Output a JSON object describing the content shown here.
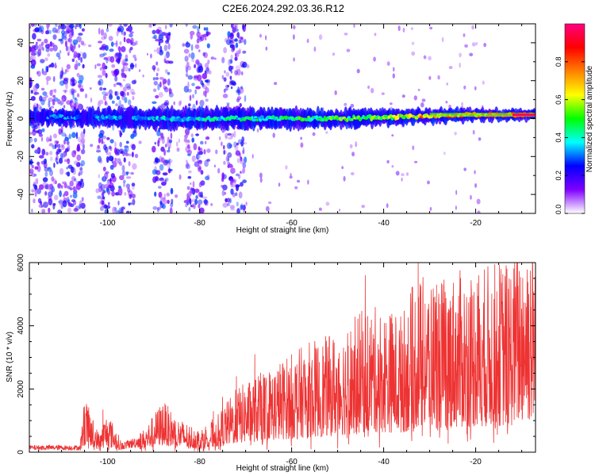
{
  "title": "C2E6.2024.292.03.36.R12",
  "chart_data": [
    {
      "type": "heatmap",
      "xlabel": "Height of straight line (km)",
      "ylabel": "Frequency (Hz)",
      "xlim": [
        -117,
        -7
      ],
      "ylim": [
        -50,
        50
      ],
      "xticks": [
        -100,
        -80,
        -60,
        -40,
        -20
      ],
      "yticks": [
        -40,
        -20,
        0,
        20,
        40
      ],
      "colorbar": {
        "label": "Normalized spectral amplitude",
        "range": [
          0,
          1
        ],
        "ticks": [
          0.0,
          0.2,
          0.4,
          0.6,
          0.8
        ],
        "tick_labels": [
          "0.0",
          "0.2",
          "0.4",
          "0.6",
          "0.8"
        ],
        "stops": [
          "#ffffff",
          "#8000ff",
          "#0000ff",
          "#00ffff",
          "#00ff00",
          "#ffff00",
          "#ff8000",
          "#ff0000",
          "#ff0080"
        ]
      },
      "ridge": {
        "frequency_hz": [
          [
            -113,
            1
          ],
          [
            -90,
            0
          ],
          [
            -70,
            0
          ],
          [
            -50,
            0
          ],
          [
            -35,
            1
          ],
          [
            -20,
            2
          ],
          [
            -7,
            2
          ]
        ],
        "halfwidth_hz": [
          [
            -113,
            3
          ],
          [
            -95,
            4
          ],
          [
            -60,
            4
          ],
          [
            -35,
            3
          ],
          [
            -7,
            2
          ]
        ],
        "amplitude": [
          [
            -117,
            0.28
          ],
          [
            -105,
            0.3
          ],
          [
            -95,
            0.36
          ],
          [
            -80,
            0.38
          ],
          [
            -60,
            0.45
          ],
          [
            -40,
            0.52
          ],
          [
            -32,
            0.7
          ],
          [
            -20,
            0.8
          ],
          [
            -7,
            0.95
          ]
        ]
      },
      "noise_bands": [
        [
          -117,
          -105
        ],
        [
          -102,
          -94
        ],
        [
          -90,
          -86
        ],
        [
          -83,
          -78
        ],
        [
          -75,
          -70
        ]
      ]
    },
    {
      "type": "line",
      "xlabel": "Height of straight line (km)",
      "ylabel": "SNR (10 * v/v)",
      "xlim": [
        -117,
        -7
      ],
      "ylim": [
        0,
        6000
      ],
      "xticks": [
        -100,
        -80,
        -60,
        -40,
        -20
      ],
      "yticks": [
        0,
        2000,
        4000,
        6000
      ],
      "color": "#ee3333",
      "series": [
        {
          "envelope": [
            [
              -117,
              150
            ],
            [
              -106,
              150
            ],
            [
              -105,
              950
            ],
            [
              -102,
              350
            ],
            [
              -100,
              700
            ],
            [
              -97,
              200
            ],
            [
              -92,
              400
            ],
            [
              -88,
              900
            ],
            [
              -85,
              600
            ],
            [
              -80,
              400
            ],
            [
              -76,
              650
            ],
            [
              -72,
              1100
            ],
            [
              -68,
              1300
            ],
            [
              -64,
              1500
            ],
            [
              -60,
              1700
            ],
            [
              -56,
              1900
            ],
            [
              -52,
              2000
            ],
            [
              -48,
              2200
            ],
            [
              -44,
              2500
            ],
            [
              -40,
              2500
            ],
            [
              -36,
              2400
            ],
            [
              -33,
              3000
            ],
            [
              -28,
              3000
            ],
            [
              -24,
              3100
            ],
            [
              -20,
              3200
            ],
            [
              -16,
              3250
            ],
            [
              -12,
              3350
            ],
            [
              -9,
              3900
            ],
            [
              -7,
              3700
            ]
          ],
          "spikes": [
            [
              -105,
              1450
            ],
            [
              -101,
              1350
            ],
            [
              -88,
              1450
            ],
            [
              -77,
              1300
            ],
            [
              -75,
              1750
            ],
            [
              -72,
              2400
            ],
            [
              -68,
              3100
            ],
            [
              -60,
              2500
            ],
            [
              -54,
              2850
            ],
            [
              -47,
              3300
            ],
            [
              -44,
              5600
            ],
            [
              -41,
              3250
            ],
            [
              -38,
              3750
            ],
            [
              -36,
              3850
            ],
            [
              -32.5,
              6000
            ],
            [
              -31,
              4700
            ],
            [
              -28.5,
              5300
            ],
            [
              -26,
              3950
            ],
            [
              -25,
              4650
            ],
            [
              -20,
              3800
            ],
            [
              -15,
              4000
            ],
            [
              -8,
              4600
            ]
          ]
        }
      ]
    }
  ]
}
